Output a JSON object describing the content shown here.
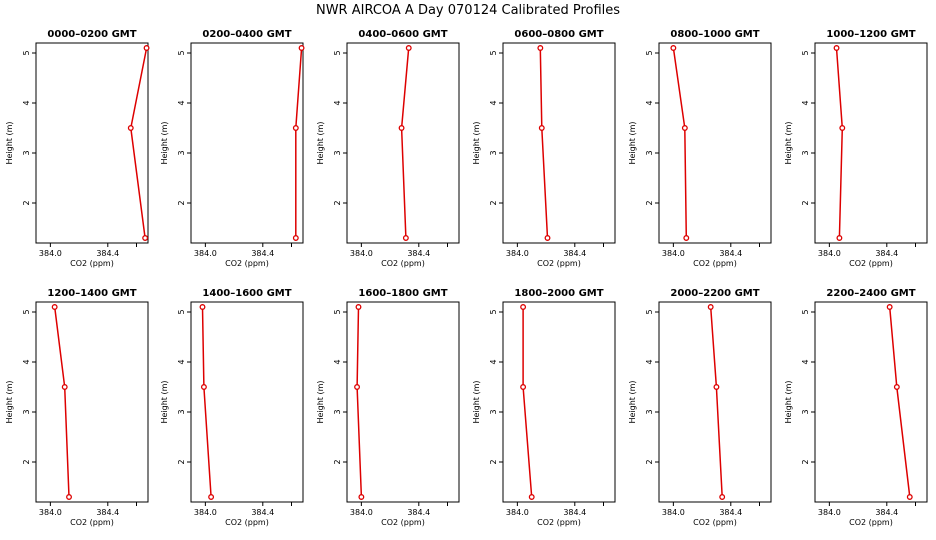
{
  "figure_title": "NWR AIRCOA A  Day 070124  Calibrated Profiles",
  "chart_data": {
    "type": "line",
    "xlabel": "CO2 (ppm)",
    "ylabel": "Height (m)",
    "xlim": [
      383.9,
      384.68
    ],
    "ylim": [
      1.2,
      5.2
    ],
    "xticks": [
      384.0,
      384.4
    ],
    "xtick_labels": [
      "384.0",
      "384.4"
    ],
    "yticks": [
      2,
      3,
      4,
      5
    ],
    "ytick_labels": [
      "2",
      "3",
      "4",
      "5"
    ],
    "heights": [
      5.1,
      3.5,
      1.3
    ],
    "line_color": "#dd0000",
    "marker_color": "#dd0000",
    "panels": [
      {
        "title": "0000–0200 GMT",
        "co2": [
          384.67,
          384.56,
          384.66
        ]
      },
      {
        "title": "0200–0400 GMT",
        "co2": [
          384.67,
          384.63,
          384.63
        ]
      },
      {
        "title": "0400–0600 GMT",
        "co2": [
          384.33,
          384.28,
          384.31
        ]
      },
      {
        "title": "0600–0800 GMT",
        "co2": [
          384.16,
          384.17,
          384.21
        ]
      },
      {
        "title": "0800–1000 GMT",
        "co2": [
          384.0,
          384.08,
          384.09
        ]
      },
      {
        "title": "1000–1200 GMT",
        "co2": [
          384.05,
          384.09,
          384.07
        ]
      },
      {
        "title": "1200–1400 GMT",
        "co2": [
          384.03,
          384.1,
          384.13
        ]
      },
      {
        "title": "1400–1600 GMT",
        "co2": [
          383.98,
          383.99,
          384.04
        ]
      },
      {
        "title": "1600–1800 GMT",
        "co2": [
          383.98,
          383.97,
          384.0
        ]
      },
      {
        "title": "1800–2000 GMT",
        "co2": [
          384.04,
          384.04,
          384.1
        ]
      },
      {
        "title": "2000–2200 GMT",
        "co2": [
          384.26,
          384.3,
          384.34
        ]
      },
      {
        "title": "2200–2400 GMT",
        "co2": [
          384.42,
          384.47,
          384.56
        ]
      }
    ]
  }
}
